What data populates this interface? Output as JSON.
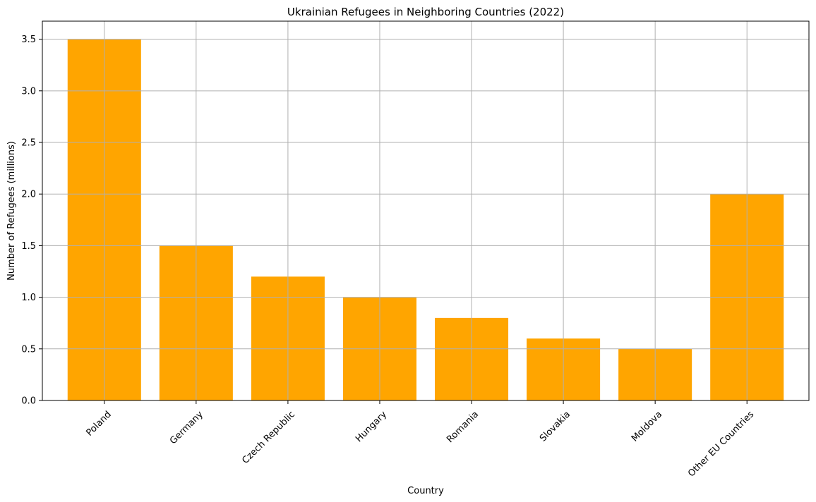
{
  "chart_data": {
    "type": "bar",
    "title": "Ukrainian Refugees in Neighboring Countries (2022)",
    "xlabel": "Country",
    "ylabel": "Number of Refugees (millions)",
    "categories": [
      "Poland",
      "Germany",
      "Czech Republic",
      "Hungary",
      "Romania",
      "Slovakia",
      "Moldova",
      "Other EU Countries"
    ],
    "values": [
      3.5,
      1.5,
      1.2,
      1.0,
      0.8,
      0.6,
      0.5,
      2.0
    ],
    "ylim": [
      0,
      3.675
    ],
    "yticks": [
      0.0,
      0.5,
      1.0,
      1.5,
      2.0,
      2.5,
      3.0,
      3.5
    ],
    "ytick_labels": [
      "0.0",
      "0.5",
      "1.0",
      "1.5",
      "2.0",
      "2.5",
      "3.0",
      "3.5"
    ],
    "grid": true,
    "bar_color": "#ffa500"
  }
}
